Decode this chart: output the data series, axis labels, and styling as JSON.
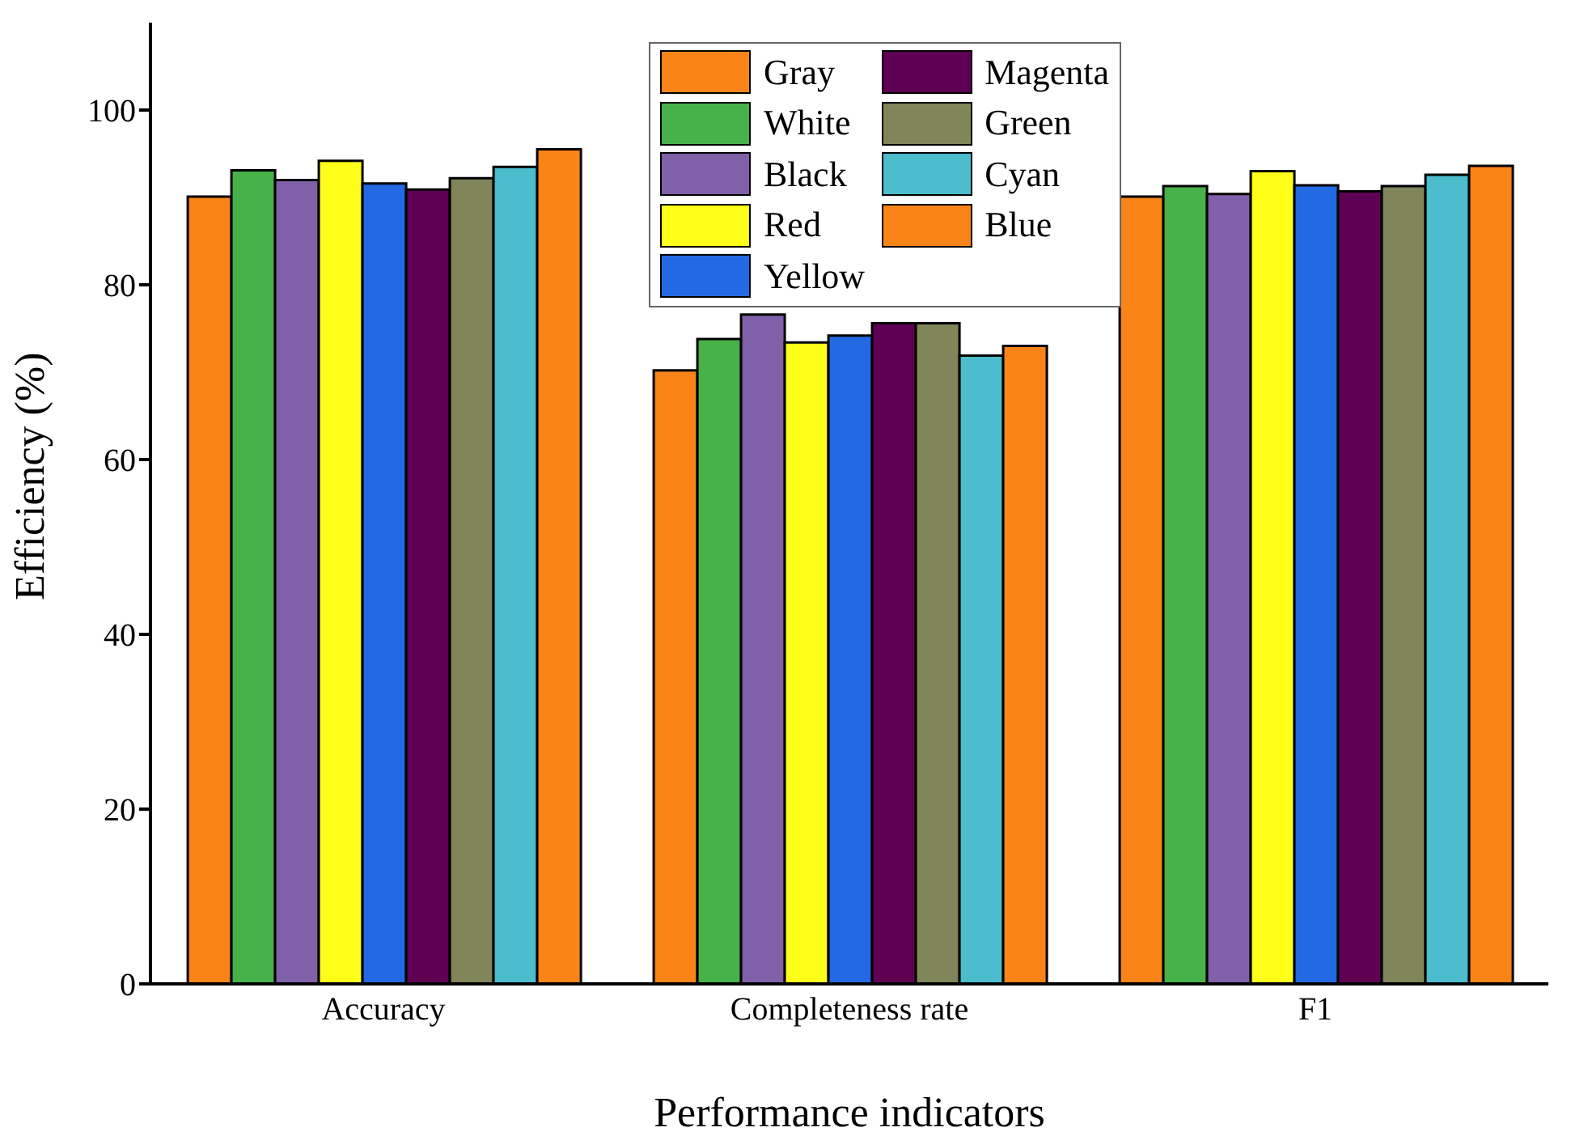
{
  "chart_data": {
    "type": "bar",
    "xlabel": "Performance indicators",
    "ylabel": "Efficiency (%)",
    "categories": [
      "Accuracy",
      "Completeness rate",
      "F1"
    ],
    "series": [
      {
        "name": "Gray",
        "color": "#fb8419",
        "values": [
          90.1,
          70.2,
          90.1
        ]
      },
      {
        "name": "White",
        "color": "#47b249",
        "values": [
          93.1,
          73.8,
          91.3
        ]
      },
      {
        "name": "Black",
        "color": "#8060a8",
        "values": [
          92.0,
          76.6,
          90.4
        ]
      },
      {
        "name": "Red",
        "color": "#ffff19",
        "values": [
          94.2,
          73.4,
          93.0
        ]
      },
      {
        "name": "Yellow",
        "color": "#2269e3",
        "values": [
          91.6,
          74.2,
          91.4
        ]
      },
      {
        "name": "Magenta",
        "color": "#600055",
        "values": [
          90.9,
          75.6,
          90.7
        ]
      },
      {
        "name": "Green",
        "color": "#80855a",
        "values": [
          92.2,
          75.6,
          91.3
        ]
      },
      {
        "name": "Cyan",
        "color": "#4bbdcd",
        "values": [
          93.5,
          71.9,
          92.6
        ]
      },
      {
        "name": "Blue",
        "color": "#fb8419",
        "values": [
          95.5,
          73.0,
          93.6
        ]
      }
    ],
    "ylim": [
      0,
      110
    ],
    "yticks": [
      0,
      20,
      40,
      60,
      80,
      100
    ],
    "legend": "top"
  }
}
